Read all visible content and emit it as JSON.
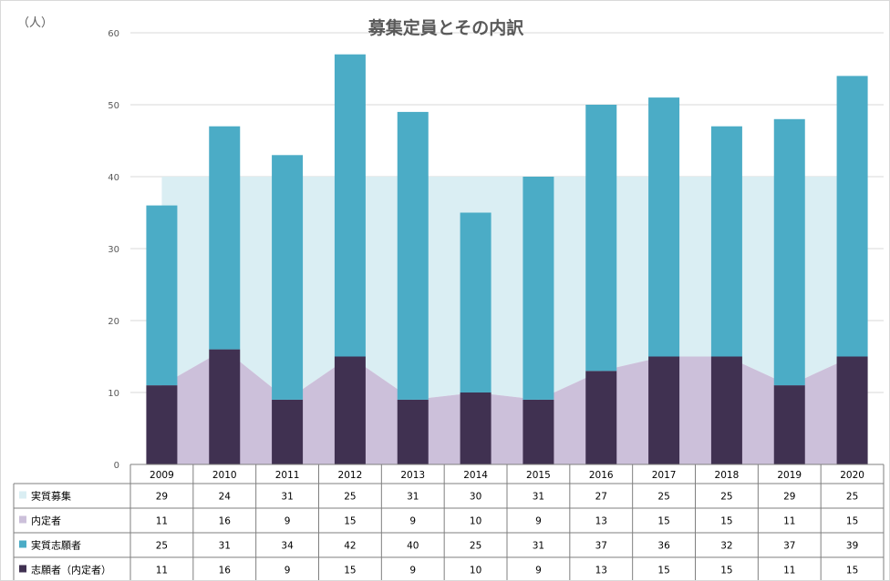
{
  "chart_data": {
    "type": "bar",
    "title": "募集定員とその内訳",
    "unit_label": "（人）",
    "ylim": [
      0,
      60
    ],
    "yticks": [
      0,
      10,
      20,
      30,
      40,
      50,
      60
    ],
    "categories": [
      "2009",
      "2010",
      "2011",
      "2012",
      "2013",
      "2014",
      "2015",
      "2016",
      "2017",
      "2018",
      "2019",
      "2020"
    ],
    "capacity_line": 40,
    "series": [
      {
        "name": "実質募集",
        "kind": "area",
        "color": "#daeef3",
        "values": [
          29,
          24,
          31,
          25,
          31,
          30,
          31,
          27,
          25,
          25,
          29,
          25
        ]
      },
      {
        "name": "内定者",
        "kind": "area",
        "color": "#ccc0da",
        "values": [
          11,
          16,
          9,
          15,
          9,
          10,
          9,
          13,
          15,
          15,
          11,
          15
        ]
      },
      {
        "name": "実質志願者",
        "kind": "stacked-bar",
        "color": "#4bacc6",
        "values": [
          25,
          31,
          34,
          42,
          40,
          25,
          31,
          37,
          36,
          32,
          37,
          39
        ]
      },
      {
        "name": "志願者（内定者）",
        "kind": "stacked-bar",
        "color": "#403151",
        "values": [
          11,
          16,
          9,
          15,
          9,
          10,
          9,
          13,
          15,
          15,
          11,
          15
        ]
      }
    ],
    "grid": true,
    "legend": "data-table"
  }
}
